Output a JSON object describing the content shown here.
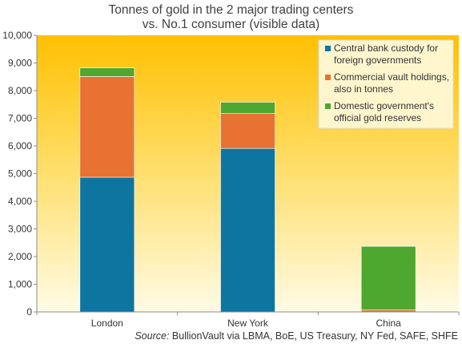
{
  "chart_data": {
    "type": "bar",
    "stacked": true,
    "title": [
      "Tonnes of gold in the 2 major trading centers",
      "vs. No.1 consumer (visible data)"
    ],
    "categories": [
      "London",
      "New York",
      "China"
    ],
    "series": [
      {
        "name": "Central bank custody for foreign governments",
        "legend_lines": [
          "Central bank custody for",
          "foreign governments"
        ],
        "color": "#0E75A0",
        "values": [
          4870,
          5910,
          0
        ]
      },
      {
        "name": "Commercial vault holdings, also in tonnes",
        "legend_lines": [
          "Commercial vault holdings,",
          "also in tonnes"
        ],
        "color": "#E87232",
        "values": [
          3640,
          1260,
          70
        ]
      },
      {
        "name": "Domestic government's official gold reserves",
        "legend_lines": [
          "Domestic government's",
          "official gold reserves"
        ],
        "color": "#4EA72E",
        "values": [
          310,
          410,
          2300
        ]
      }
    ],
    "yticks": [
      "0",
      "1,000",
      "2,000",
      "3,000",
      "4,000",
      "5,000",
      "6,000",
      "7,000",
      "8,000",
      "9,000",
      "10,000"
    ],
    "ylim": [
      0,
      10000
    ],
    "legend_position": "top-right",
    "grid": false,
    "background_gradient": {
      "top": "#FFC000",
      "bottom": "#FFFBE6"
    }
  },
  "source": {
    "label": "Source:",
    "text": " BullionVault via LBMA, BoE, US Treasury,  NY Fed,  SAFE, SHFE"
  }
}
